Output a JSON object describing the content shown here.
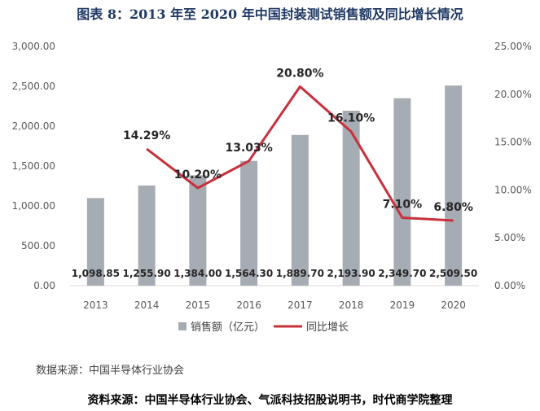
{
  "title": "图表 8：2013 年至 2020 年中国封装测试销售额及同比增长情况",
  "source_note": "数据来源：中国半导体行业协会",
  "footer_source": "资料来源：中国半导体行业协会、气派科技招股说明书，时代商学院整理",
  "colors": {
    "bar": "#a6acb3",
    "line": "#c8303b",
    "title": "#1f3864",
    "axis_text": "#595959"
  },
  "chart_data": {
    "type": "bar",
    "categories": [
      "2013",
      "2014",
      "2015",
      "2016",
      "2017",
      "2018",
      "2019",
      "2020"
    ],
    "series": [
      {
        "name": "销售额（亿元）",
        "type": "bar",
        "axis": "left",
        "values": [
          1098.85,
          1255.9,
          1384.0,
          1564.3,
          1889.7,
          2193.9,
          2349.7,
          2509.5
        ],
        "labels": [
          "1,098.85",
          "1,255.90",
          "1,384.00",
          "1,564.30",
          "1,889.70",
          "2,193.90",
          "2,349.70",
          "2,509.50"
        ]
      },
      {
        "name": "同比增长",
        "type": "line",
        "axis": "right",
        "values": [
          null,
          14.29,
          10.2,
          13.03,
          20.8,
          16.1,
          7.1,
          6.8
        ],
        "labels": [
          "",
          "14.29%",
          "10.20%",
          "13.03%",
          "20.80%",
          "16.10%",
          "7.10%",
          "6.80%"
        ]
      }
    ],
    "y_left": {
      "min": 0,
      "max": 3000,
      "ticks": [
        "0.00",
        "500.00",
        "1,000.00",
        "1,500.00",
        "2,000.00",
        "2,500.00",
        "3,000.00"
      ]
    },
    "y_right": {
      "min": 0,
      "max": 25,
      "ticks": [
        "0.00%",
        "5.00%",
        "10.00%",
        "15.00%",
        "20.00%",
        "25.00%"
      ]
    },
    "grid": false,
    "legend_position": "bottom"
  }
}
